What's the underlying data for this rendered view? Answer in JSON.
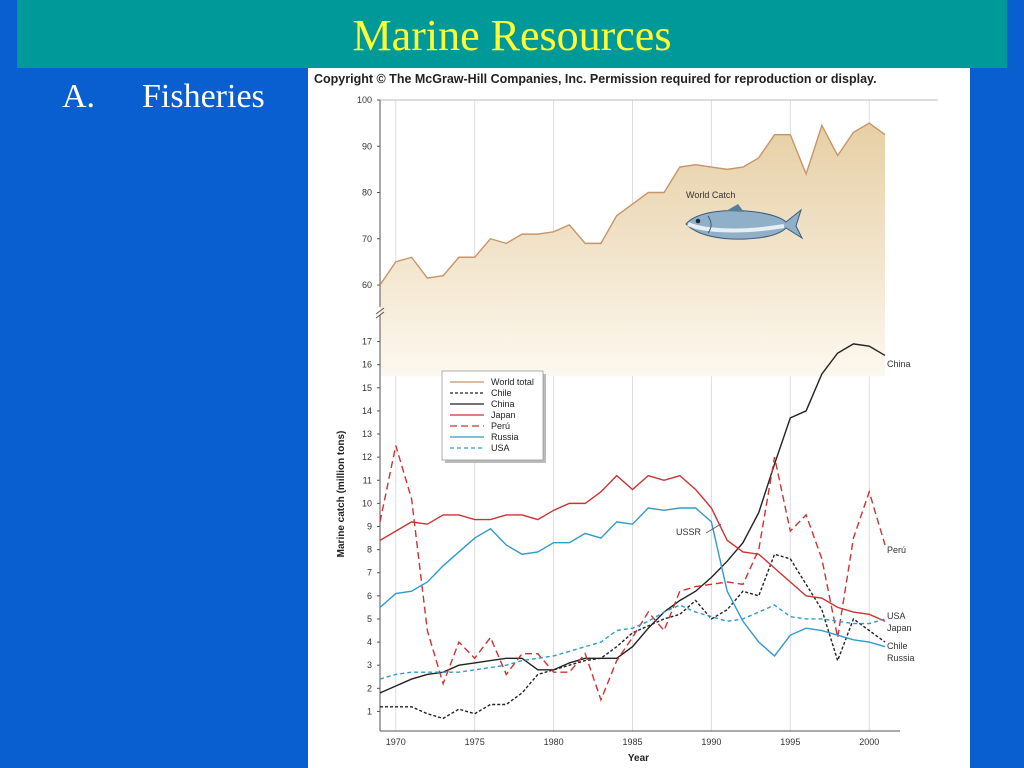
{
  "slide": {
    "title": "Marine Resources",
    "bullet_marker": "A.",
    "bullet_text": "Fisheries"
  },
  "copyright": "Copyright © The McGraw-Hill Companies, Inc. Permission required for reproduction or display.",
  "colors": {
    "background": "#0a5fd0",
    "title_bar": "#009999",
    "title_text": "#ffff33"
  },
  "chart_data": {
    "type": "line",
    "xlabel": "Year",
    "ylabel": "Marine catch (million tons)",
    "x_ticks": [
      1970,
      1975,
      1980,
      1985,
      1990,
      1995,
      2000
    ],
    "y_ticks_upper": [
      60,
      70,
      80,
      90,
      100
    ],
    "y_ticks_lower": [
      1,
      2,
      3,
      4,
      5,
      6,
      7,
      8,
      9,
      10,
      11,
      12,
      13,
      14,
      15,
      16,
      17
    ],
    "ylim_upper": [
      60,
      100
    ],
    "ylim_lower": [
      0.5,
      17.5
    ],
    "xlim": [
      1969,
      2001
    ],
    "broken_axis": true,
    "grid": "vertical",
    "legend_position": "upper-left",
    "annotations": [
      {
        "text": "World Catch",
        "series": "World total"
      },
      {
        "text": "USSR",
        "series": "Russia"
      }
    ],
    "series": [
      {
        "name": "World total",
        "color": "#c8956a",
        "dash": "solid",
        "panel": "upper",
        "label": "",
        "x": [
          1969,
          1970,
          1971,
          1972,
          1973,
          1974,
          1975,
          1976,
          1977,
          1978,
          1979,
          1980,
          1981,
          1982,
          1983,
          1984,
          1985,
          1986,
          1987,
          1988,
          1989,
          1990,
          1991,
          1992,
          1993,
          1994,
          1995,
          1996,
          1997,
          1998,
          1999,
          2000,
          2001
        ],
        "y": [
          60,
          65,
          66,
          61.5,
          62,
          66,
          66,
          70,
          69,
          71,
          71,
          71.5,
          73,
          69,
          69,
          75,
          77.5,
          80,
          80,
          85.5,
          86,
          85.5,
          85,
          85.5,
          87.5,
          92.5,
          92.5,
          84,
          94.5,
          88,
          93,
          95,
          92.5
        ]
      },
      {
        "name": "Chile",
        "color": "#222222",
        "dash": "3,2",
        "panel": "lower",
        "label": "Chile",
        "x": [
          1969,
          1970,
          1971,
          1972,
          1973,
          1974,
          1975,
          1976,
          1977,
          1978,
          1979,
          1980,
          1981,
          1982,
          1983,
          1984,
          1985,
          1986,
          1987,
          1988,
          1989,
          1990,
          1991,
          1992,
          1993,
          1994,
          1995,
          1996,
          1997,
          1998,
          1999,
          2000,
          2001
        ],
        "y": [
          1.2,
          1.2,
          1.2,
          0.9,
          0.7,
          1.1,
          0.9,
          1.3,
          1.3,
          1.8,
          2.6,
          2.8,
          3.0,
          3.2,
          3.3,
          3.8,
          4.4,
          4.7,
          5.0,
          5.2,
          5.8,
          5.0,
          5.4,
          6.2,
          6.0,
          7.8,
          7.6,
          6.5,
          5.4,
          3.2,
          5.0,
          4.5,
          4.0
        ]
      },
      {
        "name": "China",
        "color": "#222222",
        "dash": "solid",
        "panel": "lower",
        "label": "China",
        "x": [
          1969,
          1970,
          1971,
          1972,
          1973,
          1974,
          1975,
          1976,
          1977,
          1978,
          1979,
          1980,
          1981,
          1982,
          1983,
          1984,
          1985,
          1986,
          1987,
          1988,
          1989,
          1990,
          1991,
          1992,
          1993,
          1994,
          1995,
          1996,
          1997,
          1998,
          1999,
          2000,
          2001
        ],
        "y": [
          1.8,
          2.1,
          2.4,
          2.6,
          2.7,
          3.0,
          3.1,
          3.2,
          3.3,
          3.3,
          2.8,
          2.8,
          3.1,
          3.3,
          3.3,
          3.3,
          3.8,
          4.6,
          5.3,
          5.8,
          6.2,
          6.8,
          7.5,
          8.3,
          9.6,
          11.7,
          13.7,
          14.0,
          15.6,
          16.5,
          16.9,
          16.8,
          16.4
        ]
      },
      {
        "name": "Japan",
        "color": "#cc3333",
        "dash": "solid",
        "panel": "lower",
        "label": "Japan",
        "x": [
          1969,
          1970,
          1971,
          1972,
          1973,
          1974,
          1975,
          1976,
          1977,
          1978,
          1979,
          1980,
          1981,
          1982,
          1983,
          1984,
          1985,
          1986,
          1987,
          1988,
          1989,
          1990,
          1991,
          1992,
          1993,
          1994,
          1995,
          1996,
          1997,
          1998,
          1999,
          2000,
          2001
        ],
        "y": [
          8.4,
          8.8,
          9.2,
          9.1,
          9.5,
          9.5,
          9.3,
          9.3,
          9.5,
          9.5,
          9.3,
          9.7,
          10.0,
          10.0,
          10.5,
          11.2,
          10.6,
          11.2,
          11.0,
          11.2,
          10.6,
          9.8,
          8.4,
          7.9,
          7.8,
          7.2,
          6.6,
          6.0,
          5.9,
          5.5,
          5.3,
          5.2,
          4.9
        ]
      },
      {
        "name": "Perú",
        "color": "#cc3333",
        "dash": "7,4",
        "panel": "lower",
        "label": "Perú",
        "x": [
          1969,
          1970,
          1971,
          1972,
          1973,
          1974,
          1975,
          1976,
          1977,
          1978,
          1979,
          1980,
          1981,
          1982,
          1983,
          1984,
          1985,
          1986,
          1987,
          1988,
          1989,
          1990,
          1991,
          1992,
          1993,
          1994,
          1995,
          1996,
          1997,
          1998,
          1999,
          2000,
          2001
        ],
        "y": [
          9.2,
          12.5,
          10.2,
          4.5,
          2.2,
          4.0,
          3.3,
          4.2,
          2.6,
          3.5,
          3.5,
          2.7,
          2.7,
          3.5,
          1.5,
          3.2,
          4.2,
          5.3,
          4.5,
          6.2,
          6.4,
          6.5,
          6.6,
          6.5,
          8.0,
          12.0,
          8.8,
          9.5,
          7.6,
          4.2,
          8.5,
          10.5,
          8.2
        ]
      },
      {
        "name": "Russia",
        "color": "#3399cc",
        "dash": "solid",
        "panel": "lower",
        "label": "Russia",
        "x": [
          1969,
          1970,
          1971,
          1972,
          1973,
          1974,
          1975,
          1976,
          1977,
          1978,
          1979,
          1980,
          1981,
          1982,
          1983,
          1984,
          1985,
          1986,
          1987,
          1988,
          1989,
          1990,
          1991,
          1992,
          1993,
          1994,
          1995,
          1996,
          1997,
          1998,
          1999,
          2000,
          2001
        ],
        "y": [
          5.5,
          6.1,
          6.2,
          6.6,
          7.3,
          7.9,
          8.5,
          8.9,
          8.2,
          7.8,
          7.9,
          8.3,
          8.3,
          8.7,
          8.5,
          9.2,
          9.1,
          9.8,
          9.7,
          9.8,
          9.8,
          9.2,
          6.2,
          4.9,
          4.0,
          3.4,
          4.3,
          4.6,
          4.5,
          4.3,
          4.1,
          4.0,
          3.8
        ]
      },
      {
        "name": "USA",
        "color": "#3399cc",
        "dash": "4,3",
        "panel": "lower",
        "label": "USA",
        "x": [
          1969,
          1970,
          1971,
          1972,
          1973,
          1974,
          1975,
          1976,
          1977,
          1978,
          1979,
          1980,
          1981,
          1982,
          1983,
          1984,
          1985,
          1986,
          1987,
          1988,
          1989,
          1990,
          1991,
          1992,
          1993,
          1994,
          1995,
          1996,
          1997,
          1998,
          1999,
          2000,
          2001
        ],
        "y": [
          2.4,
          2.6,
          2.7,
          2.7,
          2.7,
          2.7,
          2.8,
          2.9,
          3.0,
          3.2,
          3.3,
          3.4,
          3.6,
          3.8,
          4.0,
          4.5,
          4.6,
          4.9,
          5.3,
          5.6,
          5.3,
          5.1,
          4.9,
          5.0,
          5.3,
          5.6,
          5.1,
          5.0,
          5.0,
          4.9,
          4.8,
          4.8,
          5.0
        ]
      }
    ]
  }
}
